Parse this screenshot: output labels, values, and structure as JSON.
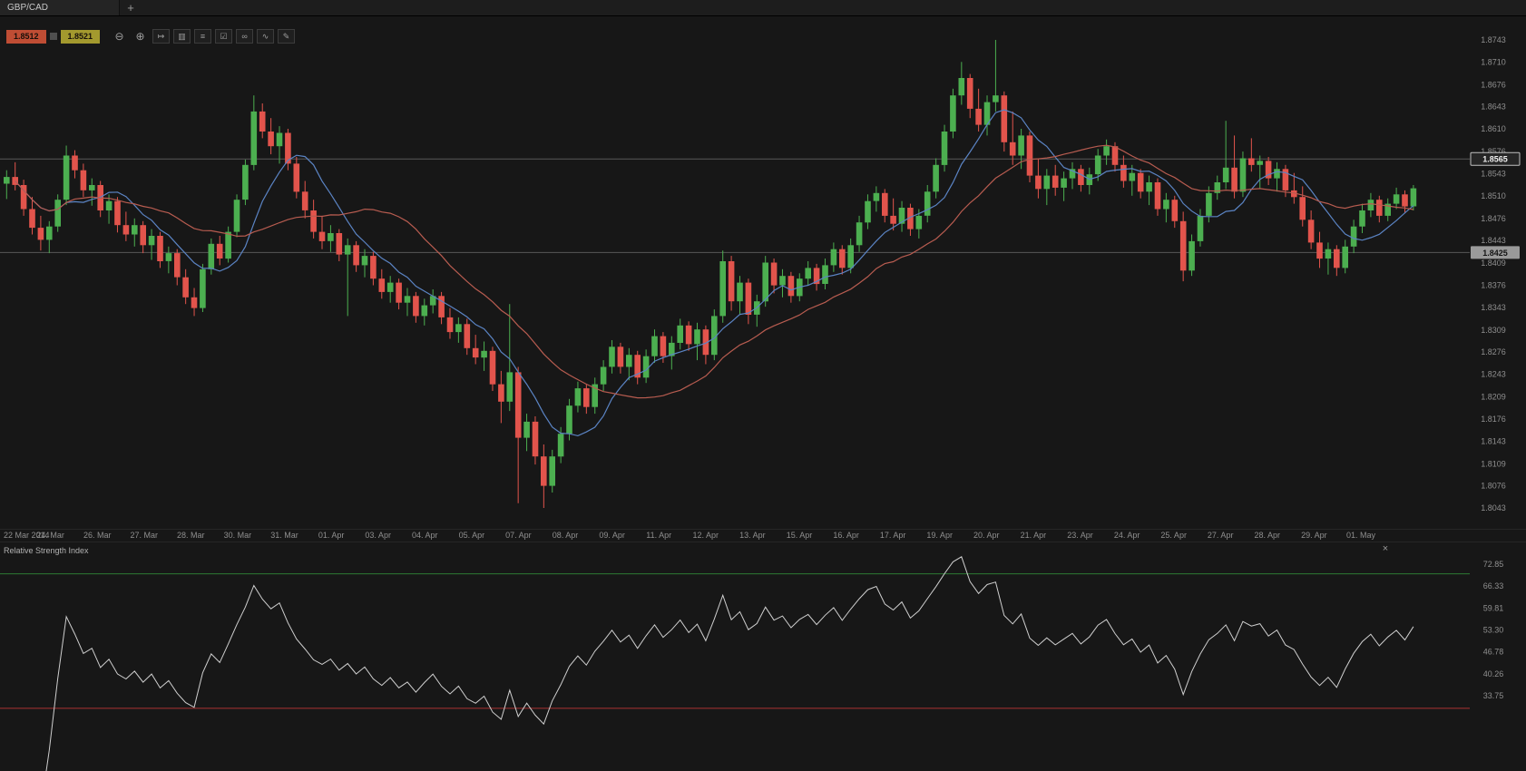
{
  "window": {
    "tab_label": "GBP/CAD",
    "new_tab_label": "+"
  },
  "quote": {
    "bid": "1.8512",
    "ask": "1.8521"
  },
  "toolbar": {
    "icons": [
      "zoom-out",
      "zoom-in",
      "scroll-to-end",
      "chart-type",
      "timeframes",
      "templates",
      "link-charts",
      "indicators",
      "drawing-tools"
    ]
  },
  "indicator_panel": {
    "close_label": "×"
  },
  "colors": {
    "background": "#171717",
    "up_candle": "#4caf50",
    "down_candle": "#e2544c",
    "ma_fast": "#5b84c4",
    "ma_slow": "#b85c50",
    "axis_text": "#8f8f8f",
    "price_line": "#585858",
    "rsi_line": "#cfcfcf",
    "overbought_line": "#2d7a35",
    "oversold_line": "#aa3333",
    "sell_badge": "#bf4d34",
    "buy_badge": "#a3992e"
  },
  "chart_data": {
    "type": "candlestick",
    "symbol": "GBP/CAD",
    "price_axis_labels": [
      "1.8743",
      "1.8710",
      "1.8676",
      "1.8643",
      "1.8610",
      "1.8576",
      "1.8543",
      "1.8510",
      "1.8476",
      "1.8443",
      "1.8409",
      "1.8376",
      "1.8343",
      "1.8309",
      "1.8276",
      "1.8243",
      "1.8209",
      "1.8176",
      "1.8143",
      "1.8109",
      "1.8076",
      "1.8043"
    ],
    "time_axis_labels": [
      "22 Mar 2014",
      "24. Mar",
      "26. Mar",
      "27. Mar",
      "28. Mar",
      "30. Mar",
      "31. Mar",
      "01. Apr",
      "03. Apr",
      "04. Apr",
      "05. Apr",
      "07. Apr",
      "08. Apr",
      "09. Apr",
      "11. Apr",
      "12. Apr",
      "13. Apr",
      "15. Apr",
      "16. Apr",
      "17. Apr",
      "19. Apr",
      "20. Apr",
      "21. Apr",
      "23. Apr",
      "24. Apr",
      "25. Apr",
      "27. Apr",
      "28. Apr",
      "29. Apr",
      "01. May"
    ],
    "price_lines": [
      {
        "value": 1.8565,
        "label": "1.8565",
        "style": "bordered"
      },
      {
        "value": 1.8425,
        "label": "1.8425",
        "style": "solid"
      }
    ],
    "overlays": [
      {
        "name": "ma-fast",
        "period": 8,
        "color": "#5b84c4"
      },
      {
        "name": "ma-slow",
        "period": 20,
        "color": "#b85c50"
      }
    ],
    "indicator": {
      "type": "rsi",
      "period": 14,
      "title": "Relative Strength Index",
      "overbought": 70,
      "oversold": 30,
      "axis_labels": [
        "72.85",
        "66.33",
        "59.81",
        "53.30",
        "46.78",
        "40.26",
        "33.75"
      ]
    },
    "candles": [
      [
        1.8528,
        1.8548,
        1.8505,
        1.8538
      ],
      [
        1.8538,
        1.856,
        1.8518,
        1.8526
      ],
      [
        1.8526,
        1.8534,
        1.848,
        1.849
      ],
      [
        1.849,
        1.8508,
        1.8452,
        1.8462
      ],
      [
        1.8462,
        1.848,
        1.8428,
        1.8444
      ],
      [
        1.8444,
        1.8472,
        1.8424,
        1.8464
      ],
      [
        1.8464,
        1.8512,
        1.8456,
        1.8504
      ],
      [
        1.8504,
        1.8585,
        1.8496,
        1.857
      ],
      [
        1.857,
        1.8578,
        1.8536,
        1.8548
      ],
      [
        1.8548,
        1.8558,
        1.8508,
        1.8518
      ],
      [
        1.8518,
        1.8536,
        1.8495,
        1.8526
      ],
      [
        1.8526,
        1.8532,
        1.8478,
        1.8488
      ],
      [
        1.8488,
        1.8512,
        1.8468,
        1.8502
      ],
      [
        1.8502,
        1.8508,
        1.8455,
        1.8466
      ],
      [
        1.8466,
        1.8486,
        1.8442,
        1.8452
      ],
      [
        1.8452,
        1.8476,
        1.8434,
        1.8466
      ],
      [
        1.8466,
        1.8472,
        1.8424,
        1.8436
      ],
      [
        1.8436,
        1.846,
        1.8414,
        1.845
      ],
      [
        1.845,
        1.8456,
        1.8402,
        1.8412
      ],
      [
        1.8412,
        1.8434,
        1.8394,
        1.8424
      ],
      [
        1.8424,
        1.843,
        1.8376,
        1.8388
      ],
      [
        1.8388,
        1.84,
        1.8348,
        1.8358
      ],
      [
        1.8358,
        1.8372,
        1.833,
        1.8342
      ],
      [
        1.8342,
        1.8408,
        1.8336,
        1.84
      ],
      [
        1.84,
        1.8446,
        1.8392,
        1.8438
      ],
      [
        1.8438,
        1.845,
        1.8406,
        1.8416
      ],
      [
        1.8416,
        1.8464,
        1.841,
        1.8456
      ],
      [
        1.8456,
        1.8512,
        1.8448,
        1.8504
      ],
      [
        1.8504,
        1.8564,
        1.8496,
        1.8556
      ],
      [
        1.8556,
        1.866,
        1.8548,
        1.8636
      ],
      [
        1.8636,
        1.8648,
        1.8596,
        1.8606
      ],
      [
        1.8606,
        1.8626,
        1.8572,
        1.8584
      ],
      [
        1.8584,
        1.8614,
        1.8558,
        1.8604
      ],
      [
        1.8604,
        1.861,
        1.8548,
        1.8558
      ],
      [
        1.8558,
        1.8568,
        1.8506,
        1.8516
      ],
      [
        1.8516,
        1.8532,
        1.8476,
        1.8488
      ],
      [
        1.8488,
        1.8504,
        1.8446,
        1.8456
      ],
      [
        1.8456,
        1.848,
        1.843,
        1.8442
      ],
      [
        1.8442,
        1.8466,
        1.8426,
        1.8454
      ],
      [
        1.8454,
        1.846,
        1.8412,
        1.8422
      ],
      [
        1.8422,
        1.8446,
        1.833,
        1.8436
      ],
      [
        1.8436,
        1.8442,
        1.8396,
        1.8406
      ],
      [
        1.8406,
        1.843,
        1.8388,
        1.842
      ],
      [
        1.842,
        1.8426,
        1.8376,
        1.8386
      ],
      [
        1.8386,
        1.84,
        1.8356,
        1.8366
      ],
      [
        1.8366,
        1.839,
        1.835,
        1.838
      ],
      [
        1.838,
        1.8386,
        1.834,
        1.835
      ],
      [
        1.835,
        1.8372,
        1.833,
        1.836
      ],
      [
        1.836,
        1.8366,
        1.832,
        1.833
      ],
      [
        1.833,
        1.8356,
        1.8316,
        1.8346
      ],
      [
        1.8346,
        1.837,
        1.8334,
        1.836
      ],
      [
        1.836,
        1.8366,
        1.8318,
        1.8328
      ],
      [
        1.8328,
        1.8342,
        1.8296,
        1.8306
      ],
      [
        1.8306,
        1.8328,
        1.829,
        1.8318
      ],
      [
        1.8318,
        1.8326,
        1.8272,
        1.8282
      ],
      [
        1.8282,
        1.8302,
        1.8258,
        1.8268
      ],
      [
        1.8268,
        1.8292,
        1.8248,
        1.8278
      ],
      [
        1.8278,
        1.8284,
        1.8218,
        1.8228
      ],
      [
        1.8228,
        1.8248,
        1.817,
        1.8202
      ],
      [
        1.8202,
        1.8348,
        1.8188,
        1.8246
      ],
      [
        1.8246,
        1.8254,
        1.805,
        1.8148
      ],
      [
        1.8148,
        1.8184,
        1.8128,
        1.8172
      ],
      [
        1.8172,
        1.818,
        1.8108,
        1.812
      ],
      [
        1.812,
        1.8138,
        1.8043,
        1.8076
      ],
      [
        1.8076,
        1.813,
        1.8066,
        1.812
      ],
      [
        1.812,
        1.8164,
        1.811,
        1.8154
      ],
      [
        1.8154,
        1.8206,
        1.8144,
        1.8196
      ],
      [
        1.8196,
        1.8232,
        1.8186,
        1.8222
      ],
      [
        1.8222,
        1.8228,
        1.8184,
        1.8194
      ],
      [
        1.8194,
        1.8238,
        1.8184,
        1.8228
      ],
      [
        1.8228,
        1.8264,
        1.8218,
        1.8254
      ],
      [
        1.8254,
        1.8294,
        1.8244,
        1.8284
      ],
      [
        1.8284,
        1.829,
        1.8244,
        1.8254
      ],
      [
        1.8254,
        1.8282,
        1.8234,
        1.8272
      ],
      [
        1.8272,
        1.8278,
        1.8228,
        1.8238
      ],
      [
        1.8238,
        1.828,
        1.823,
        1.827
      ],
      [
        1.827,
        1.831,
        1.826,
        1.83
      ],
      [
        1.83,
        1.8306,
        1.826,
        1.827
      ],
      [
        1.827,
        1.83,
        1.825,
        1.829
      ],
      [
        1.829,
        1.8326,
        1.828,
        1.8316
      ],
      [
        1.8316,
        1.8322,
        1.8278,
        1.8288
      ],
      [
        1.8288,
        1.832,
        1.8264,
        1.831
      ],
      [
        1.831,
        1.8316,
        1.8258,
        1.8272
      ],
      [
        1.8272,
        1.834,
        1.8264,
        1.833
      ],
      [
        1.833,
        1.8428,
        1.832,
        1.8412
      ],
      [
        1.8412,
        1.842,
        1.8338,
        1.8352
      ],
      [
        1.8352,
        1.839,
        1.8332,
        1.838
      ],
      [
        1.838,
        1.8386,
        1.8318,
        1.8332
      ],
      [
        1.8332,
        1.8362,
        1.8314,
        1.8352
      ],
      [
        1.8352,
        1.842,
        1.8344,
        1.841
      ],
      [
        1.841,
        1.8416,
        1.8364,
        1.8376
      ],
      [
        1.8376,
        1.84,
        1.8358,
        1.839
      ],
      [
        1.839,
        1.8396,
        1.835,
        1.836
      ],
      [
        1.836,
        1.8394,
        1.8352,
        1.8386
      ],
      [
        1.8386,
        1.8412,
        1.8376,
        1.8402
      ],
      [
        1.8402,
        1.8408,
        1.8368,
        1.8378
      ],
      [
        1.8378,
        1.8416,
        1.837,
        1.8406
      ],
      [
        1.8406,
        1.844,
        1.8396,
        1.843
      ],
      [
        1.843,
        1.8436,
        1.8392,
        1.8402
      ],
      [
        1.8402,
        1.8446,
        1.8394,
        1.8436
      ],
      [
        1.8436,
        1.848,
        1.8426,
        1.847
      ],
      [
        1.847,
        1.8512,
        1.846,
        1.8502
      ],
      [
        1.8502,
        1.8524,
        1.8486,
        1.8514
      ],
      [
        1.8514,
        1.852,
        1.847,
        1.848
      ],
      [
        1.848,
        1.8506,
        1.8458,
        1.8468
      ],
      [
        1.8468,
        1.8502,
        1.8456,
        1.8492
      ],
      [
        1.8492,
        1.8498,
        1.845,
        1.846
      ],
      [
        1.846,
        1.849,
        1.8446,
        1.848
      ],
      [
        1.848,
        1.8526,
        1.847,
        1.8516
      ],
      [
        1.8516,
        1.8566,
        1.8506,
        1.8556
      ],
      [
        1.8556,
        1.8616,
        1.8546,
        1.8606
      ],
      [
        1.8606,
        1.867,
        1.8596,
        1.866
      ],
      [
        1.866,
        1.871,
        1.8646,
        1.8686
      ],
      [
        1.8686,
        1.8692,
        1.8626,
        1.864
      ],
      [
        1.864,
        1.867,
        1.8606,
        1.8616
      ],
      [
        1.8616,
        1.866,
        1.86,
        1.865
      ],
      [
        1.865,
        1.8743,
        1.8636,
        1.866
      ],
      [
        1.866,
        1.8666,
        1.8576,
        1.859
      ],
      [
        1.859,
        1.8636,
        1.8556,
        1.857
      ],
      [
        1.857,
        1.861,
        1.855,
        1.86
      ],
      [
        1.86,
        1.8606,
        1.853,
        1.854
      ],
      [
        1.854,
        1.8566,
        1.8506,
        1.852
      ],
      [
        1.852,
        1.855,
        1.8496,
        1.854
      ],
      [
        1.854,
        1.8556,
        1.851,
        1.8522
      ],
      [
        1.8522,
        1.8546,
        1.8502,
        1.8536
      ],
      [
        1.8536,
        1.856,
        1.852,
        1.855
      ],
      [
        1.855,
        1.8556,
        1.8516,
        1.8526
      ],
      [
        1.8526,
        1.8552,
        1.8512,
        1.8542
      ],
      [
        1.8542,
        1.858,
        1.8532,
        1.857
      ],
      [
        1.857,
        1.8594,
        1.8556,
        1.8584
      ],
      [
        1.8584,
        1.859,
        1.8546,
        1.8556
      ],
      [
        1.8556,
        1.857,
        1.8522,
        1.8532
      ],
      [
        1.8532,
        1.8556,
        1.851,
        1.8544
      ],
      [
        1.8544,
        1.855,
        1.8506,
        1.8516
      ],
      [
        1.8516,
        1.854,
        1.8496,
        1.853
      ],
      [
        1.853,
        1.8536,
        1.848,
        1.849
      ],
      [
        1.849,
        1.8514,
        1.847,
        1.8504
      ],
      [
        1.8504,
        1.851,
        1.8462,
        1.8472
      ],
      [
        1.8472,
        1.8486,
        1.8382,
        1.8398
      ],
      [
        1.8398,
        1.8452,
        1.839,
        1.8442
      ],
      [
        1.8442,
        1.849,
        1.8434,
        1.848
      ],
      [
        1.848,
        1.8524,
        1.847,
        1.8514
      ],
      [
        1.8514,
        1.854,
        1.8504,
        1.853
      ],
      [
        1.853,
        1.8622,
        1.852,
        1.8552
      ],
      [
        1.8552,
        1.86,
        1.8506,
        1.8516
      ],
      [
        1.8516,
        1.8576,
        1.8508,
        1.8566
      ],
      [
        1.8566,
        1.8596,
        1.8546,
        1.8556
      ],
      [
        1.8556,
        1.857,
        1.852,
        1.8562
      ],
      [
        1.8562,
        1.8568,
        1.8526,
        1.8536
      ],
      [
        1.8536,
        1.856,
        1.8516,
        1.855
      ],
      [
        1.855,
        1.8556,
        1.8508,
        1.8518
      ],
      [
        1.8518,
        1.8544,
        1.8498,
        1.8508
      ],
      [
        1.8508,
        1.8524,
        1.8464,
        1.8474
      ],
      [
        1.8474,
        1.8488,
        1.843,
        1.844
      ],
      [
        1.844,
        1.8456,
        1.8402,
        1.8416
      ],
      [
        1.8416,
        1.844,
        1.8392,
        1.843
      ],
      [
        1.843,
        1.8436,
        1.839,
        1.8402
      ],
      [
        1.8402,
        1.8444,
        1.8394,
        1.8434
      ],
      [
        1.8434,
        1.8474,
        1.8424,
        1.8464
      ],
      [
        1.8464,
        1.8498,
        1.8454,
        1.8488
      ],
      [
        1.8488,
        1.8514,
        1.8478,
        1.8504
      ],
      [
        1.8504,
        1.851,
        1.847,
        1.848
      ],
      [
        1.848,
        1.8506,
        1.8472,
        1.8498
      ],
      [
        1.8498,
        1.8522,
        1.849,
        1.8512
      ],
      [
        1.8512,
        1.8518,
        1.8484,
        1.8494
      ],
      [
        1.8494,
        1.8526,
        1.8488,
        1.8521
      ]
    ]
  }
}
